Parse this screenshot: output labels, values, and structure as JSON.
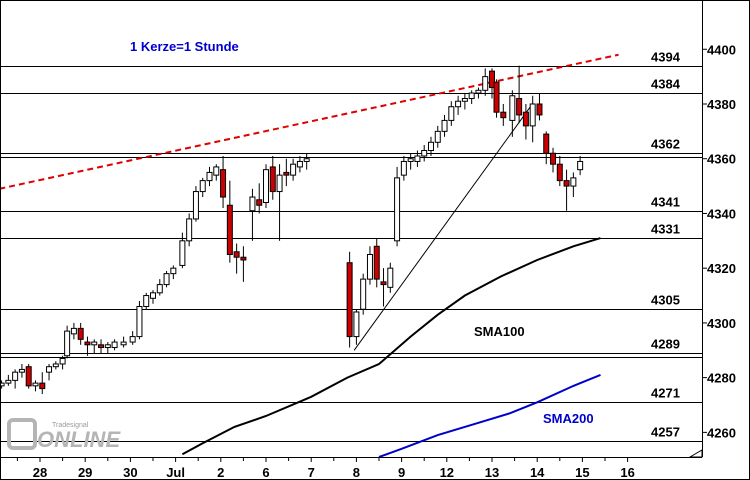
{
  "chart_data": {
    "type": "candlestick",
    "annotation_candle": "1 Kerze=1 Stunde",
    "y_ticks": [
      4260,
      4280,
      4300,
      4320,
      4340,
      4360,
      4380,
      4400
    ],
    "ylim": [
      4251,
      4418
    ],
    "x_ticks": [
      "28",
      "29",
      "30",
      "Jul",
      "2",
      "6",
      "7",
      "8",
      "9",
      "12",
      "13",
      "14",
      "15",
      "16"
    ],
    "levels": [
      {
        "value": 4394,
        "label": "4394"
      },
      {
        "value": 4384,
        "label": "4384"
      },
      {
        "value": 4362,
        "label": "4362"
      },
      {
        "value": 4341,
        "label": "4341"
      },
      {
        "value": 4331,
        "label": "4331"
      },
      {
        "value": 4305,
        "label": "4305"
      },
      {
        "value": 4289,
        "label": "4289"
      },
      {
        "value": 4271,
        "label": "4271"
      },
      {
        "value": 4257,
        "label": "4257"
      }
    ],
    "series": [
      {
        "name": "SMA100",
        "color": "#000000",
        "points": [
          [
            3.15,
            4252
          ],
          [
            3.6,
            4256
          ],
          [
            4.3,
            4262
          ],
          [
            5.0,
            4266
          ],
          [
            6.0,
            4273
          ],
          [
            6.8,
            4280
          ],
          [
            7.5,
            4285
          ],
          [
            8.2,
            4295
          ],
          [
            8.8,
            4303
          ],
          [
            9.4,
            4310
          ],
          [
            10.2,
            4317
          ],
          [
            11.0,
            4323
          ],
          [
            11.8,
            4328
          ],
          [
            12.4,
            4331
          ]
        ]
      },
      {
        "name": "SMA200",
        "color": "#0000cc",
        "points": [
          [
            7.5,
            4251
          ],
          [
            8.0,
            4254
          ],
          [
            8.8,
            4259
          ],
          [
            9.6,
            4263
          ],
          [
            10.4,
            4267
          ],
          [
            11.0,
            4271
          ],
          [
            11.8,
            4277
          ],
          [
            12.4,
            4281
          ]
        ]
      }
    ],
    "trend_lines": [
      {
        "style": "dashed",
        "color": "#e00000",
        "from": [
          -0.9,
          4349
        ],
        "to": [
          12.8,
          4398
        ]
      },
      {
        "style": "solid",
        "color": "#000000",
        "from": [
          6.95,
          4290
        ],
        "to": [
          10.85,
          4379
        ]
      }
    ],
    "logo_text": "Tradesignal online",
    "candles": [
      [
        -0.85,
        4277,
        4279,
        4276,
        4278
      ],
      [
        -0.7,
        4278,
        4281,
        4277,
        4279
      ],
      [
        -0.55,
        4279,
        4283,
        4276,
        4282
      ],
      [
        -0.4,
        4282,
        4285,
        4280,
        4283
      ],
      [
        -0.25,
        4284,
        4285,
        4276,
        4277
      ],
      [
        -0.1,
        4277,
        4279,
        4275,
        4278
      ],
      [
        0.05,
        4278,
        4282,
        4274,
        4276
      ],
      [
        0.2,
        4282,
        4285,
        4279,
        4284
      ],
      [
        0.35,
        4284,
        4286,
        4283,
        4285
      ],
      [
        0.5,
        4285,
        4288,
        4283,
        4287
      ],
      [
        0.6,
        4288,
        4299,
        4287,
        4297
      ],
      [
        0.75,
        4296,
        4300,
        4294,
        4298
      ],
      [
        0.9,
        4298,
        4300,
        4292,
        4294
      ],
      [
        1.05,
        4293,
        4295,
        4288,
        4292
      ],
      [
        1.2,
        4292,
        4294,
        4289,
        4293
      ],
      [
        1.35,
        4292,
        4294,
        4289,
        4291
      ],
      [
        1.5,
        4291,
        4293,
        4289,
        4292
      ],
      [
        1.65,
        4291,
        4294,
        4290,
        4293
      ],
      [
        1.85,
        4292,
        4295,
        4291,
        4293
      ],
      [
        2.05,
        4293,
        4297,
        4292,
        4295
      ],
      [
        2.2,
        4295,
        4308,
        4294,
        4306
      ],
      [
        2.35,
        4306,
        4311,
        4305,
        4310
      ],
      [
        2.5,
        4309,
        4312,
        4307,
        4311
      ],
      [
        2.65,
        4311,
        4316,
        4310,
        4314
      ],
      [
        2.8,
        4314,
        4319,
        4313,
        4318
      ],
      [
        2.95,
        4318,
        4321,
        4316,
        4320
      ],
      [
        3.15,
        4321,
        4333,
        4320,
        4330
      ],
      [
        3.3,
        4330,
        4340,
        4328,
        4338
      ],
      [
        3.45,
        4338,
        4350,
        4337,
        4348
      ],
      [
        3.6,
        4348,
        4353,
        4346,
        4352
      ],
      [
        3.75,
        4352,
        4357,
        4350,
        4355
      ],
      [
        3.9,
        4354,
        4358,
        4352,
        4357
      ],
      [
        4.05,
        4356,
        4361,
        4342,
        4346
      ],
      [
        4.2,
        4343,
        4352,
        4322,
        4325
      ],
      [
        4.35,
        4326,
        4329,
        4318,
        4324
      ],
      [
        4.5,
        4324,
        4328,
        4315,
        4323
      ],
      [
        4.7,
        4341,
        4349,
        4330,
        4346
      ],
      [
        4.85,
        4345,
        4351,
        4340,
        4343
      ],
      [
        5.0,
        4344,
        4358,
        4342,
        4356
      ],
      [
        5.15,
        4357,
        4361,
        4345,
        4348
      ],
      [
        5.3,
        4348,
        4358,
        4330,
        4354
      ],
      [
        5.45,
        4355,
        4360,
        4350,
        4354
      ],
      [
        5.6,
        4354,
        4360,
        4352,
        4358
      ],
      [
        5.75,
        4357,
        4361,
        4355,
        4359
      ],
      [
        5.9,
        4359,
        4362,
        4356,
        4360
      ],
      [
        6.85,
        4322,
        4326,
        4291,
        4295
      ],
      [
        7.0,
        4295,
        4305,
        4292,
        4304
      ],
      [
        7.15,
        4305,
        4318,
        4303,
        4316
      ],
      [
        7.3,
        4316,
        4328,
        4314,
        4325
      ],
      [
        7.45,
        4328,
        4331,
        4313,
        4316
      ],
      [
        7.6,
        4315,
        4320,
        4306,
        4314
      ],
      [
        7.75,
        4313,
        4322,
        4311,
        4320
      ],
      [
        7.9,
        4330,
        4357,
        4328,
        4353
      ],
      [
        8.05,
        4354,
        4361,
        4352,
        4359
      ],
      [
        8.2,
        4359,
        4362,
        4356,
        4360
      ],
      [
        8.35,
        4359,
        4363,
        4357,
        4361
      ],
      [
        8.5,
        4361,
        4365,
        4359,
        4363
      ],
      [
        8.65,
        4363,
        4368,
        4361,
        4366
      ],
      [
        8.8,
        4366,
        4372,
        4364,
        4370
      ],
      [
        8.95,
        4370,
        4376,
        4368,
        4374
      ],
      [
        9.1,
        4374,
        4381,
        4372,
        4379
      ],
      [
        9.25,
        4379,
        4383,
        4376,
        4381
      ],
      [
        9.4,
        4381,
        4384,
        4378,
        4382
      ],
      [
        9.55,
        4382,
        4385,
        4380,
        4384
      ],
      [
        9.7,
        4384,
        4386,
        4382,
        4385
      ],
      [
        9.85,
        4385,
        4393,
        4383,
        4390
      ],
      [
        10.0,
        4392,
        4393,
        4382,
        4386
      ],
      [
        10.1,
        4388,
        4389,
        4375,
        4377
      ],
      [
        10.25,
        4377,
        4380,
        4372,
        4375
      ],
      [
        10.45,
        4374,
        4385,
        4368,
        4383
      ],
      [
        10.6,
        4382,
        4394,
        4373,
        4376
      ],
      [
        10.75,
        4377,
        4380,
        4367,
        4372
      ],
      [
        10.9,
        4372,
        4383,
        4366,
        4380
      ],
      [
        11.05,
        4380,
        4384,
        4374,
        4376
      ],
      [
        11.2,
        4369,
        4370,
        4358,
        4362
      ],
      [
        11.35,
        4362,
        4364,
        4355,
        4358
      ],
      [
        11.5,
        4358,
        4361,
        4350,
        4352
      ],
      [
        11.65,
        4352,
        4356,
        4341,
        4350
      ],
      [
        11.8,
        4350,
        4355,
        4346,
        4353
      ],
      [
        11.95,
        4356,
        4361,
        4354,
        4359
      ]
    ]
  }
}
